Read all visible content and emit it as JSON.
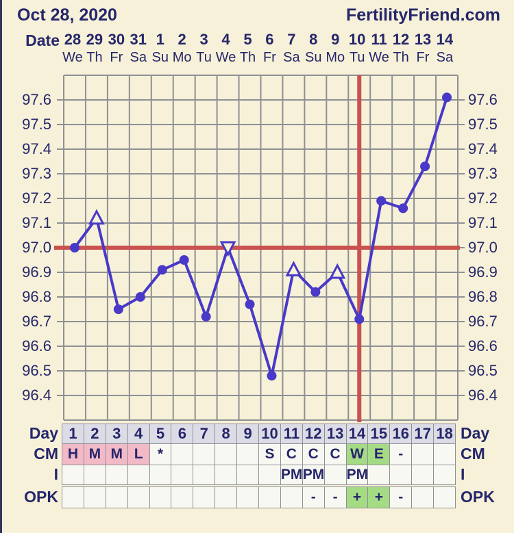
{
  "header": {
    "date": "Oct 28, 2020",
    "brand": "FertilityFriend.com"
  },
  "labels": {
    "date_axis": "Date"
  },
  "dates": [
    "28",
    "29",
    "30",
    "31",
    "1",
    "2",
    "3",
    "4",
    "5",
    "6",
    "7",
    "8",
    "9",
    "10",
    "11",
    "12",
    "13",
    "14"
  ],
  "weekdays": [
    "We",
    "Th",
    "Fr",
    "Sa",
    "Su",
    "Mo",
    "Tu",
    "We",
    "Th",
    "Fr",
    "Sa",
    "Su",
    "Mo",
    "Tu",
    "We",
    "Th",
    "Fr",
    "Sa"
  ],
  "chart_data": {
    "type": "line",
    "title": "Basal body temperature chart",
    "x_days": [
      1,
      2,
      3,
      4,
      5,
      6,
      7,
      8,
      9,
      10,
      11,
      12,
      13,
      14,
      15,
      16,
      17,
      18
    ],
    "temps": [
      97.0,
      97.12,
      96.75,
      96.8,
      96.91,
      96.95,
      96.72,
      97.0,
      96.77,
      96.48,
      96.91,
      96.82,
      96.9,
      96.71,
      97.19,
      97.16,
      97.33,
      97.61
    ],
    "markers": [
      "circle",
      "triangle-up",
      "circle",
      "circle",
      "circle",
      "circle",
      "circle",
      "triangle-down",
      "circle",
      "circle",
      "triangle-up",
      "circle",
      "triangle-up",
      "circle",
      "circle",
      "circle",
      "circle",
      "circle"
    ],
    "y_ticks": [
      97.6,
      97.5,
      97.4,
      97.3,
      97.2,
      97.1,
      97.0,
      96.9,
      96.8,
      96.7,
      96.6,
      96.5,
      96.4
    ],
    "ylim": [
      96.3,
      97.7
    ],
    "grid": true,
    "coverline": 97.0,
    "ovulation_day": 14
  },
  "table": {
    "rows": [
      {
        "key": "day",
        "label": "Day",
        "type": "header",
        "values": [
          "1",
          "2",
          "3",
          "4",
          "5",
          "6",
          "7",
          "8",
          "9",
          "10",
          "11",
          "12",
          "13",
          "14",
          "15",
          "16",
          "17",
          "18"
        ],
        "highlights": [
          "",
          "",
          "",
          "",
          "",
          "",
          "",
          "",
          "",
          "",
          "",
          "",
          "",
          "",
          "",
          "",
          "",
          ""
        ]
      },
      {
        "key": "cm",
        "label": "CM",
        "type": "data",
        "values": [
          "H",
          "M",
          "M",
          "L",
          "*",
          "",
          "",
          "",
          "",
          "S",
          "C",
          "C",
          "C",
          "W",
          "E",
          "-",
          "",
          ""
        ],
        "highlights": [
          "pink",
          "pink",
          "pink",
          "pink",
          "",
          "",
          "",
          "",
          "",
          "",
          "",
          "",
          "",
          "green",
          "green",
          "",
          "",
          ""
        ]
      },
      {
        "key": "i",
        "label": "I",
        "type": "data",
        "values": [
          "",
          "",
          "",
          "",
          "",
          "",
          "",
          "",
          "",
          "",
          "PM",
          "PM",
          "",
          "PM",
          "",
          "",
          "",
          ""
        ],
        "highlights": [
          "",
          "",
          "",
          "",
          "",
          "",
          "",
          "",
          "",
          "",
          "",
          "",
          "",
          "",
          "",
          "",
          "",
          ""
        ]
      },
      {
        "key": "opk",
        "label": "OPK",
        "type": "data",
        "values": [
          "",
          "",
          "",
          "",
          "",
          "",
          "",
          "",
          "",
          "",
          "",
          "-",
          "-",
          "+",
          "+",
          "-",
          "",
          ""
        ],
        "highlights": [
          "",
          "",
          "",
          "",
          "",
          "",
          "",
          "",
          "",
          "",
          "",
          "",
          "",
          "green",
          "green",
          "",
          "",
          ""
        ]
      }
    ]
  },
  "colors": {
    "background": "#f6f1d8",
    "text": "#26266b",
    "line": "#4839c8",
    "red": "#c9514f",
    "grid": "#8e9094",
    "pink": "#f2b9c7",
    "green": "#a6db85",
    "header_cell": "#dcdce6",
    "cell": "#f8f8f2"
  }
}
